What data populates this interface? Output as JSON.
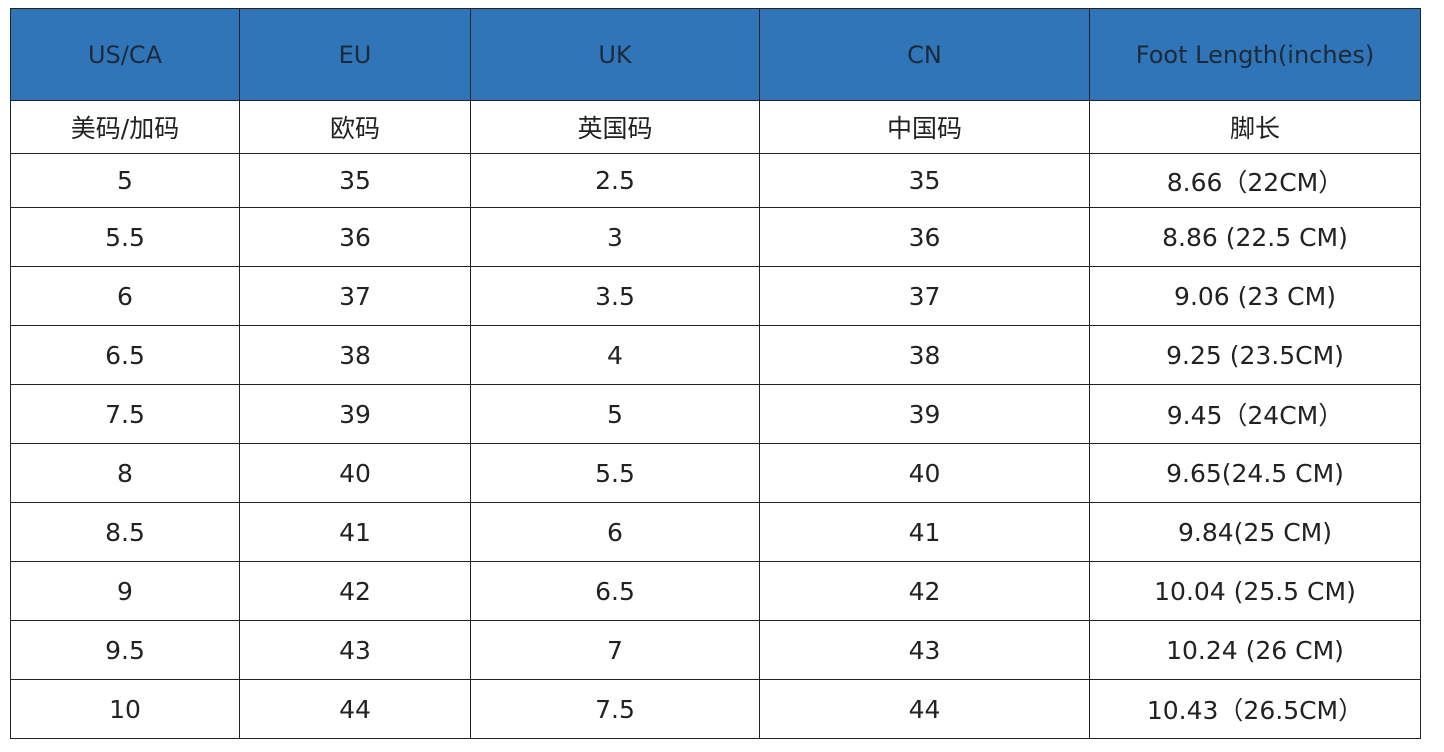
{
  "table": {
    "header": [
      "US/CA",
      "EU",
      "UK",
      "CN",
      "Foot Length(inches)"
    ],
    "subheader": [
      "美码/加码",
      "欧码",
      "英国码",
      "中国码",
      "脚长"
    ],
    "rows": [
      [
        "5",
        "35",
        "2.5",
        "35",
        "8.66（22CM）"
      ],
      [
        "5.5",
        "36",
        "3",
        "36",
        "8.86 (22.5 CM)"
      ],
      [
        "6",
        "37",
        "3.5",
        "37",
        "9.06 (23 CM)"
      ],
      [
        "6.5",
        "38",
        "4",
        "38",
        "9.25 (23.5CM)"
      ],
      [
        "7.5",
        "39",
        "5",
        "39",
        "9.45（24CM）"
      ],
      [
        "8",
        "40",
        "5.5",
        "40",
        "9.65(24.5 CM)"
      ],
      [
        "8.5",
        "41",
        "6",
        "41",
        "9.84(25 CM)"
      ],
      [
        "9",
        "42",
        "6.5",
        "42",
        "10.04 (25.5 CM)"
      ],
      [
        "9.5",
        "43",
        "7",
        "43",
        "10.24 (26 CM)"
      ],
      [
        "10",
        "44",
        "7.5",
        "44",
        "10.43（26.5CM）"
      ]
    ]
  }
}
